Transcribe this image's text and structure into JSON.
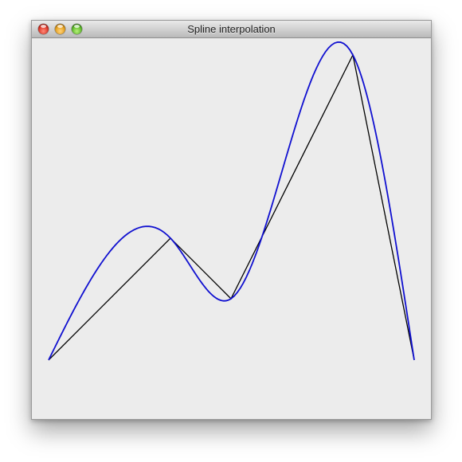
{
  "window": {
    "title": "Spline interpolation",
    "controls": [
      "close",
      "minimize",
      "zoom"
    ]
  },
  "colors": {
    "spline": "#1010d0",
    "polyline": "#000000",
    "background": "#ececec"
  },
  "chart_data": {
    "type": "line",
    "title": "",
    "xlabel": "",
    "ylabel": "",
    "grid": false,
    "x_range": [
      0,
      460
    ],
    "y_range": [
      0,
      478
    ],
    "control_points": [
      {
        "x": 0,
        "y": 76
      },
      {
        "x": 153,
        "y": 229
      },
      {
        "x": 229,
        "y": 153
      },
      {
        "x": 382,
        "y": 459
      },
      {
        "x": 459,
        "y": 76
      }
    ],
    "series": [
      {
        "kind": "control-polyline",
        "color": "#000000"
      },
      {
        "kind": "cubic-spline",
        "color": "#1010d0"
      }
    ]
  }
}
